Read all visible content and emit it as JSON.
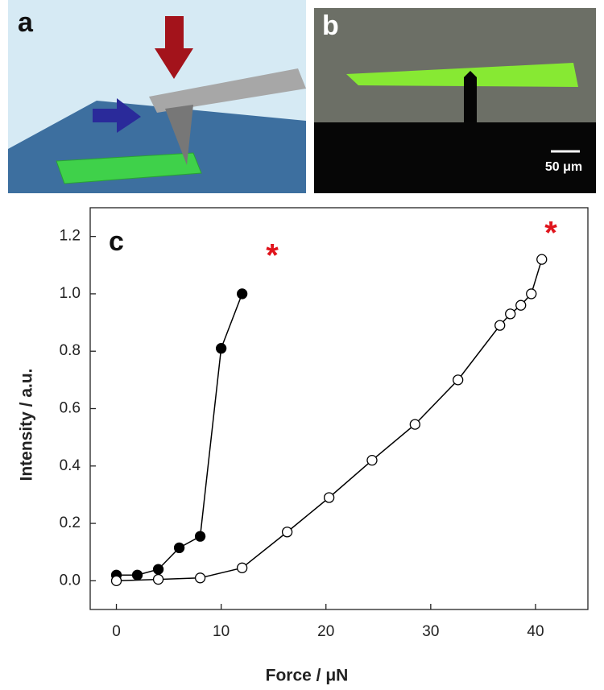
{
  "figure": {
    "panel_labels": [
      "a",
      "b",
      "c"
    ],
    "scale_bar": "50 μm"
  },
  "chart_data": {
    "type": "line",
    "x_label": "Force / μN",
    "y_label": "Intensity / a.u.",
    "xlim": [
      -2.5,
      45
    ],
    "ylim": [
      -0.1,
      1.3
    ],
    "xticks": [
      0,
      10,
      20,
      30,
      40
    ],
    "yticks": [
      {
        "value": 0,
        "label": "0.0"
      },
      0.2,
      0.4,
      0.6,
      0.8,
      {
        "value": 1,
        "label": "1.0"
      },
      1.2
    ],
    "annotations": [
      "*",
      "*"
    ],
    "annotation_color": "#e0141c",
    "series": [
      {
        "color": "#000000",
        "marker_fill": "#000000",
        "x": [
          0,
          2,
          4,
          6,
          8,
          10,
          12
        ],
        "values": [
          0.02,
          0.02,
          0.04,
          0.115,
          0.155,
          0.81,
          1.0
        ]
      },
      {
        "color": "#000000",
        "marker_fill": "#ffffff",
        "x": [
          0,
          4,
          8,
          12,
          16.3,
          20.3,
          24.4,
          28.5,
          32.6,
          36.6,
          37.6,
          38.6,
          39.6,
          40.6
        ],
        "values": [
          0,
          0.005,
          0.01,
          0.045,
          0.17,
          0.29,
          0.42,
          0.545,
          0.7,
          0.89,
          0.93,
          0.96,
          1.0,
          1.12
        ]
      }
    ]
  }
}
